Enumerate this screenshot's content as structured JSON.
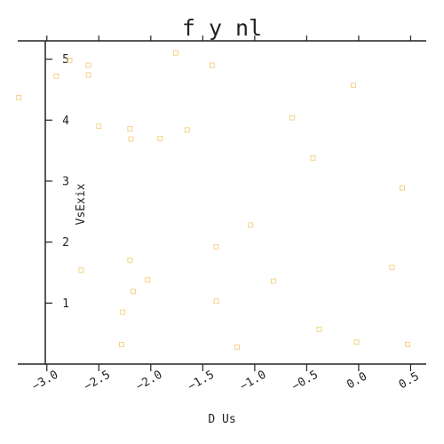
{
  "chart_data": {
    "type": "scatter",
    "title": "f y nl",
    "xlabel": "D Us",
    "ylabel": "VsExix",
    "xlim": [
      -3.28,
      0.65
    ],
    "ylim": [
      0.0,
      5.3
    ],
    "x_ticks": [
      -3.0,
      -2.5,
      -2.0,
      -1.5,
      -1.0,
      -0.5,
      0.0,
      0.5
    ],
    "x_tick_labels": [
      "−3.0",
      "−2.5",
      "−2.0",
      "−1.5",
      "−1.0",
      "−0.5",
      "0.0",
      "0.5"
    ],
    "y_ticks": [
      1,
      2,
      3,
      4,
      5
    ],
    "y_tick_labels": [
      "1",
      "2",
      "3",
      "4",
      "5"
    ],
    "grid": false,
    "legend": "none",
    "marker": "hollow-square",
    "color": "#f3cf7a",
    "points": [
      {
        "x": -3.27,
        "y": 4.37
      },
      {
        "x": -2.91,
        "y": 4.72
      },
      {
        "x": -2.78,
        "y": 4.98
      },
      {
        "x": -2.6,
        "y": 4.9
      },
      {
        "x": -2.6,
        "y": 4.74
      },
      {
        "x": -2.5,
        "y": 3.9
      },
      {
        "x": -2.2,
        "y": 3.86
      },
      {
        "x": -2.19,
        "y": 3.69
      },
      {
        "x": -1.91,
        "y": 3.7
      },
      {
        "x": -1.76,
        "y": 5.1
      },
      {
        "x": -1.65,
        "y": 3.84
      },
      {
        "x": -1.41,
        "y": 4.9
      },
      {
        "x": -0.64,
        "y": 4.04
      },
      {
        "x": -0.05,
        "y": 4.57
      },
      {
        "x": -0.44,
        "y": 3.38
      },
      {
        "x": 0.42,
        "y": 2.89
      },
      {
        "x": -1.04,
        "y": 2.28
      },
      {
        "x": -1.37,
        "y": 1.92
      },
      {
        "x": -2.67,
        "y": 1.54
      },
      {
        "x": -2.2,
        "y": 1.7
      },
      {
        "x": -2.17,
        "y": 1.19
      },
      {
        "x": -2.03,
        "y": 1.38
      },
      {
        "x": -1.37,
        "y": 1.03
      },
      {
        "x": -0.82,
        "y": 1.36
      },
      {
        "x": 0.32,
        "y": 1.59
      },
      {
        "x": -2.27,
        "y": 0.85
      },
      {
        "x": -2.28,
        "y": 0.32
      },
      {
        "x": -1.17,
        "y": 0.28
      },
      {
        "x": -0.38,
        "y": 0.57
      },
      {
        "x": -0.02,
        "y": 0.36
      },
      {
        "x": 0.47,
        "y": 0.32
      }
    ]
  }
}
